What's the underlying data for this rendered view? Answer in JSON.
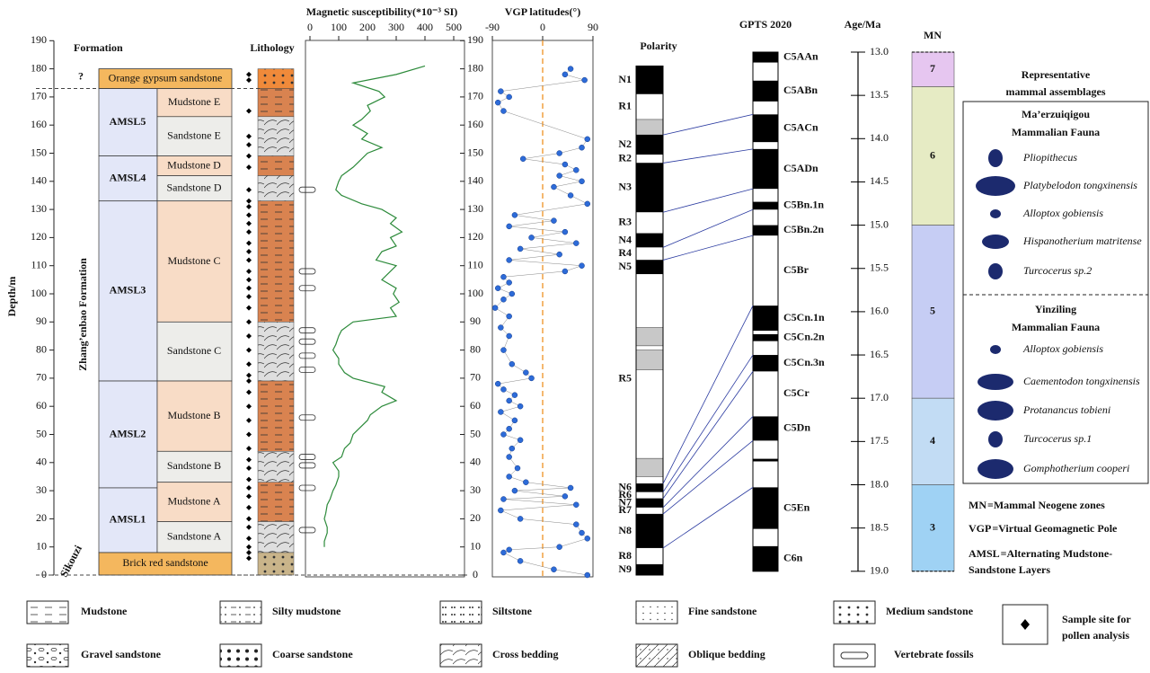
{
  "depth_axis": {
    "label": "Depth/m",
    "ticks": [
      0,
      10,
      20,
      30,
      40,
      50,
      60,
      70,
      80,
      90,
      100,
      110,
      120,
      130,
      140,
      150,
      160,
      170,
      180,
      190
    ]
  },
  "formation": {
    "header": "Formation",
    "name": "Zhang’enbao Formation",
    "lower_name": "Sikouzi",
    "unknown": "?",
    "beds": [
      {
        "name": "Orange gypsum sandstone",
        "top": 180,
        "bottom": 173
      },
      {
        "name": "Brick red sandstone",
        "top": 8,
        "bottom": 0
      }
    ],
    "members": [
      {
        "name": "AMSL5",
        "top": 173,
        "bottom": 149
      },
      {
        "name": "AMSL4",
        "top": 149,
        "bottom": 133
      },
      {
        "name": "AMSL3",
        "top": 133,
        "bottom": 69
      },
      {
        "name": "AMSL2",
        "top": 69,
        "bottom": 31
      },
      {
        "name": "AMSL1",
        "top": 31,
        "bottom": 8
      }
    ],
    "units": [
      {
        "name": "Mudstone E",
        "top": 173,
        "bottom": 163
      },
      {
        "name": "Sandstone E",
        "top": 163,
        "bottom": 149
      },
      {
        "name": "Mudstone D",
        "top": 149,
        "bottom": 142
      },
      {
        "name": "Sandstone D",
        "top": 142,
        "bottom": 133
      },
      {
        "name": "Mudstone C",
        "top": 133,
        "bottom": 90
      },
      {
        "name": "Sandstone C",
        "top": 90,
        "bottom": 69
      },
      {
        "name": "Mudstone B",
        "top": 69,
        "bottom": 44
      },
      {
        "name": "Sandstone B",
        "top": 44,
        "bottom": 33
      },
      {
        "name": "Mudstone A",
        "top": 33,
        "bottom": 19
      },
      {
        "name": "Sandstone A",
        "top": 19,
        "bottom": 8
      }
    ]
  },
  "lithology": {
    "header": "Lithology",
    "pollen_samples": [
      178,
      176,
      165,
      156,
      153,
      149,
      145,
      137,
      133,
      131,
      128,
      125,
      122,
      118,
      115,
      112,
      108,
      105,
      102,
      99,
      95,
      90,
      85,
      80,
      75,
      71,
      69,
      65,
      60,
      55,
      50,
      45,
      41,
      38,
      34,
      31,
      28,
      24,
      20,
      17,
      13,
      10,
      8,
      6
    ],
    "fossils": [
      137,
      108,
      102,
      87,
      83,
      78,
      73,
      56,
      42,
      39,
      31,
      16
    ]
  },
  "susceptibility": {
    "title": "Magnetic susceptibility(*10⁻³ SI)",
    "ticks": [
      0,
      100,
      200,
      300,
      400,
      500
    ],
    "depths": [
      181,
      178,
      175,
      172,
      170,
      167,
      165,
      162,
      160,
      157,
      155,
      152,
      150,
      147,
      145,
      142,
      140,
      137,
      135,
      132,
      130,
      127,
      125,
      122,
      120,
      117,
      115,
      112,
      110,
      107,
      105,
      102,
      100,
      97,
      95,
      92,
      90,
      87,
      85,
      82,
      80,
      77,
      75,
      72,
      70,
      67,
      65,
      62,
      60,
      57,
      55,
      52,
      50,
      47,
      45,
      42,
      40,
      37,
      35,
      32,
      30,
      27,
      25,
      22,
      20,
      17,
      15,
      12,
      10
    ],
    "values": [
      400,
      300,
      150,
      240,
      260,
      200,
      210,
      180,
      150,
      200,
      180,
      250,
      200,
      170,
      150,
      110,
      100,
      90,
      110,
      180,
      250,
      300,
      280,
      320,
      280,
      300,
      250,
      230,
      300,
      270,
      250,
      300,
      290,
      310,
      280,
      300,
      150,
      110,
      100,
      90,
      80,
      100,
      100,
      120,
      150,
      260,
      250,
      300,
      250,
      210,
      200,
      170,
      150,
      140,
      120,
      110,
      80,
      100,
      100,
      90,
      80,
      70,
      60,
      55,
      50,
      60,
      60,
      50,
      50
    ]
  },
  "vgp": {
    "title": "VGP latitudes(°)",
    "ticks": [
      -90,
      0,
      90
    ],
    "points": [
      [
        180,
        50
      ],
      [
        178,
        40
      ],
      [
        176,
        75
      ],
      [
        172,
        -75
      ],
      [
        170,
        -60
      ],
      [
        168,
        -80
      ],
      [
        165,
        -70
      ],
      [
        155,
        80
      ],
      [
        152,
        70
      ],
      [
        150,
        30
      ],
      [
        148,
        -35
      ],
      [
        146,
        40
      ],
      [
        144,
        60
      ],
      [
        142,
        30
      ],
      [
        140,
        70
      ],
      [
        138,
        20
      ],
      [
        135,
        50
      ],
      [
        132,
        80
      ],
      [
        128,
        -50
      ],
      [
        126,
        20
      ],
      [
        124,
        -60
      ],
      [
        122,
        40
      ],
      [
        120,
        -20
      ],
      [
        118,
        60
      ],
      [
        116,
        -40
      ],
      [
        114,
        30
      ],
      [
        112,
        -60
      ],
      [
        110,
        70
      ],
      [
        108,
        40
      ],
      [
        106,
        -70
      ],
      [
        104,
        -60
      ],
      [
        102,
        -80
      ],
      [
        100,
        -55
      ],
      [
        98,
        -70
      ],
      [
        95,
        -85
      ],
      [
        92,
        -60
      ],
      [
        88,
        -75
      ],
      [
        85,
        -60
      ],
      [
        80,
        -70
      ],
      [
        75,
        -55
      ],
      [
        72,
        -30
      ],
      [
        70,
        -20
      ],
      [
        68,
        -80
      ],
      [
        66,
        -70
      ],
      [
        64,
        -50
      ],
      [
        62,
        -60
      ],
      [
        60,
        -40
      ],
      [
        58,
        -75
      ],
      [
        55,
        -50
      ],
      [
        52,
        -60
      ],
      [
        50,
        -70
      ],
      [
        48,
        -40
      ],
      [
        45,
        -55
      ],
      [
        42,
        -60
      ],
      [
        38,
        -45
      ],
      [
        35,
        -60
      ],
      [
        33,
        -30
      ],
      [
        31,
        50
      ],
      [
        30,
        -50
      ],
      [
        28,
        40
      ],
      [
        27,
        -70
      ],
      [
        25,
        60
      ],
      [
        23,
        -75
      ],
      [
        20,
        -40
      ],
      [
        18,
        60
      ],
      [
        15,
        70
      ],
      [
        13,
        80
      ],
      [
        10,
        30
      ],
      [
        9,
        -60
      ],
      [
        8,
        -70
      ],
      [
        5,
        -40
      ],
      [
        2,
        20
      ],
      [
        0,
        80
      ]
    ]
  },
  "polarity": {
    "header": "Polarity",
    "zones": [
      {
        "top": 181,
        "bottom": 171,
        "state": "black",
        "label": "N1"
      },
      {
        "top": 171,
        "bottom": 162,
        "state": "white",
        "label": "R1"
      },
      {
        "top": 162,
        "bottom": 156.5,
        "state": "gray"
      },
      {
        "top": 156.5,
        "bottom": 149.5,
        "state": "black",
        "label": "N2"
      },
      {
        "top": 149.5,
        "bottom": 146.5,
        "state": "white",
        "label": "R2"
      },
      {
        "top": 146.5,
        "bottom": 129,
        "state": "black",
        "label": "N3"
      },
      {
        "top": 129,
        "bottom": 121.5,
        "state": "white",
        "label": "R3"
      },
      {
        "top": 121.5,
        "bottom": 116.5,
        "state": "black",
        "label": "N4"
      },
      {
        "top": 116.5,
        "bottom": 112,
        "state": "white",
        "label": "R4"
      },
      {
        "top": 112,
        "bottom": 107,
        "state": "black",
        "label": "N5"
      },
      {
        "top": 107,
        "bottom": 32.5,
        "state": "white",
        "label": "R5"
      },
      {
        "top": 88,
        "bottom": 81.5,
        "state": "gray"
      },
      {
        "top": 80,
        "bottom": 73,
        "state": "gray"
      },
      {
        "top": 41.5,
        "bottom": 35,
        "state": "gray"
      },
      {
        "top": 32.5,
        "bottom": 29.5,
        "state": "black",
        "label": "N6"
      },
      {
        "top": 29.5,
        "bottom": 27.2,
        "state": "white",
        "label": "R6"
      },
      {
        "top": 27.2,
        "bottom": 24,
        "state": "black",
        "label": "N7"
      },
      {
        "top": 24,
        "bottom": 21.7,
        "state": "white",
        "label": "R7"
      },
      {
        "top": 21.7,
        "bottom": 9.6,
        "state": "black",
        "label": "N8"
      },
      {
        "top": 9.6,
        "bottom": 3.8,
        "state": "white",
        "label": "R8"
      },
      {
        "top": 3.8,
        "bottom": 0,
        "state": "black",
        "label": "N9"
      }
    ]
  },
  "gpts": {
    "header": "GPTS 2020",
    "age_label": "Age/Ma",
    "age_ticks": [
      {
        "value": 13,
        "label": "13.0"
      },
      13.5,
      {
        "value": 14,
        "label": "14.0"
      },
      14.5,
      {
        "value": 15,
        "label": "15.0"
      },
      15.5,
      {
        "value": 16,
        "label": "16.0"
      },
      16.5,
      {
        "value": 17,
        "label": "17.0"
      },
      17.5,
      {
        "value": 18,
        "label": "18.0"
      },
      18.5,
      {
        "value": 19,
        "label": "19.0"
      }
    ],
    "chrons": [
      {
        "name": "C5AAn",
        "top": 13.0,
        "bottom": 13.12,
        "normal": true
      },
      {
        "name": "C5ABn",
        "top": 13.33,
        "bottom": 13.57,
        "normal": true
      },
      {
        "name": "C5ACn",
        "top": 13.72,
        "bottom": 14.04,
        "normal": true
      },
      {
        "name": "C5ADn",
        "top": 14.12,
        "bottom": 14.58,
        "normal": true
      },
      {
        "name": "C5Bn.1n",
        "top": 14.73,
        "bottom": 14.82,
        "normal": true
      },
      {
        "name": "C5Bn.2n",
        "top": 15.0,
        "bottom": 15.12,
        "normal": true
      },
      {
        "name": "C5Br",
        "top": 15.12,
        "bottom": 15.93,
        "normal": false
      },
      {
        "name": "C5Cn.1n",
        "top": 15.93,
        "bottom": 16.22,
        "normal": true
      },
      {
        "name": "C5Cn.2n",
        "top": 16.26,
        "bottom": 16.34,
        "normal": true
      },
      {
        "name": "C5Cn.3n",
        "top": 16.5,
        "bottom": 16.69,
        "normal": true
      },
      {
        "name": "C5Cr",
        "top": 16.69,
        "bottom": 17.21,
        "normal": false
      },
      {
        "name": "C5Dn",
        "top": 17.21,
        "bottom": 17.49,
        "normal": true
      },
      {
        "top": 17.7,
        "bottom": 17.73,
        "normal": true
      },
      {
        "name": "C5En",
        "top": 18.03,
        "bottom": 18.51,
        "normal": true
      },
      {
        "name": "C6n",
        "top": 18.71,
        "bottom": 19.0,
        "normal": true
      }
    ],
    "correlations": [
      [
        156.5,
        13.72
      ],
      [
        146.5,
        14.12
      ],
      [
        129,
        14.58
      ],
      [
        116.5,
        14.82
      ],
      [
        112,
        15.12
      ],
      [
        32.5,
        15.93
      ],
      [
        29.5,
        16.5
      ],
      [
        27.2,
        16.69
      ],
      [
        24,
        17.21
      ],
      [
        21.7,
        17.49
      ],
      [
        9.6,
        18.03
      ]
    ]
  },
  "mn": {
    "header": "MN",
    "zones": [
      {
        "name": "7",
        "top": 13.0,
        "bottom": 13.4,
        "color": "#e6c6f0"
      },
      {
        "name": "6",
        "top": 13.4,
        "bottom": 15.0,
        "color": "#e6ebc4"
      },
      {
        "name": "5",
        "top": 15.0,
        "bottom": 17.0,
        "color": "#c6cdf4"
      },
      {
        "name": "4",
        "top": 17.0,
        "bottom": 18.0,
        "color": "#c2dcf4"
      },
      {
        "name": "3",
        "top": 18.0,
        "bottom": 19.0,
        "color": "#9fd2f4"
      }
    ]
  },
  "assemblages": {
    "title": [
      "Representative",
      "mammal assemblages"
    ],
    "faunas": [
      {
        "name": [
          "Ma’erzuiqigou",
          "Mammalian Fauna"
        ],
        "species": [
          "Pliopithecus",
          "Platybelodon tongxinensis",
          "Alloptox gobiensis",
          "Hispanotherium matritense",
          "Turcocerus sp.2"
        ]
      },
      {
        "name": [
          "Yinziling",
          "Mammalian Fauna"
        ],
        "species": [
          "Alloptox gobiensis",
          "Caementodon tongxinensis",
          "Protanancus tobieni",
          "Turcocerus sp.1",
          "Gomphotherium cooperi"
        ]
      }
    ],
    "notes": [
      {
        "abbr": "MN",
        "text": [
          "=Mammal Neogene zones"
        ]
      },
      {
        "abbr": "VGP",
        "text": [
          "=Virtual Geomagnetic Pole"
        ]
      },
      {
        "abbr": "AMSL",
        "text": [
          "=Alternating Mudstone-",
          "Sandstone Layers"
        ]
      }
    ]
  },
  "legend": {
    "items": [
      "Mudstone",
      "Silty mudstone",
      "Siltstone",
      "Fine sandstone",
      "Medium sandstone",
      "Gravel sandstone",
      "Coarse sandstone",
      "Cross bedding",
      "Oblique bedding",
      "Vertebrate fossils"
    ],
    "sample": [
      "Sample site for",
      "pollen analysis"
    ]
  }
}
